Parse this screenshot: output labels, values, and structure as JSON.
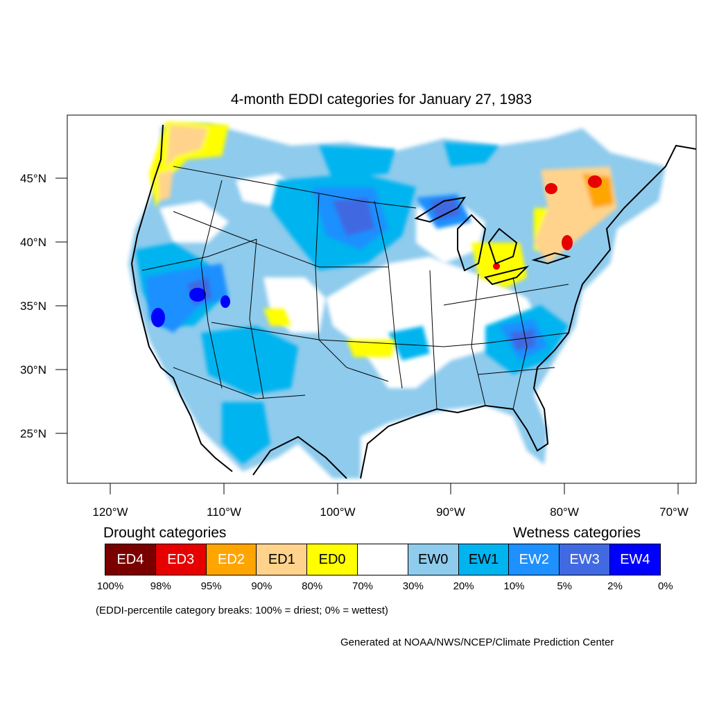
{
  "title": "4-month EDDI categories for January 27, 1983",
  "lat_labels": [
    "45°N",
    "40°N",
    "35°N",
    "30°N",
    "25°N"
  ],
  "lon_labels": [
    "120°W",
    "110°W",
    "100°W",
    "90°W",
    "80°W",
    "70°W"
  ],
  "legend": {
    "drought_heading": "Drought categories",
    "wetness_heading": "Wetness categories",
    "categories": [
      {
        "label": "ED4",
        "color": "#7a0000",
        "text_color": "#ffffff"
      },
      {
        "label": "ED3",
        "color": "#e60000",
        "text_color": "#ffffff"
      },
      {
        "label": "ED2",
        "color": "#ffa500",
        "text_color": "#ffffff"
      },
      {
        "label": "ED1",
        "color": "#ffd38c",
        "text_color": "#000000"
      },
      {
        "label": "ED0",
        "color": "#ffff00",
        "text_color": "#000000"
      },
      {
        "label": "",
        "color": "#ffffff",
        "text_color": "#000000"
      },
      {
        "label": "EW0",
        "color": "#8ecbed",
        "text_color": "#000000"
      },
      {
        "label": "EW1",
        "color": "#00b4ef",
        "text_color": "#000000"
      },
      {
        "label": "EW2",
        "color": "#1e90ff",
        "text_color": "#ffffff"
      },
      {
        "label": "EW3",
        "color": "#4169e1",
        "text_color": "#ffffff"
      },
      {
        "label": "EW4",
        "color": "#0000ff",
        "text_color": "#ffffff"
      }
    ],
    "breaks": [
      "100%",
      "98%",
      "95%",
      "90%",
      "80%",
      "70%",
      "30%",
      "20%",
      "10%",
      "5%",
      "2%",
      "0%"
    ]
  },
  "note": "(EDDI-percentile category breaks: 100% = driest; 0% = wettest)",
  "credit": "Generated at NOAA/NWS/NCEP/Climate Prediction Center"
}
